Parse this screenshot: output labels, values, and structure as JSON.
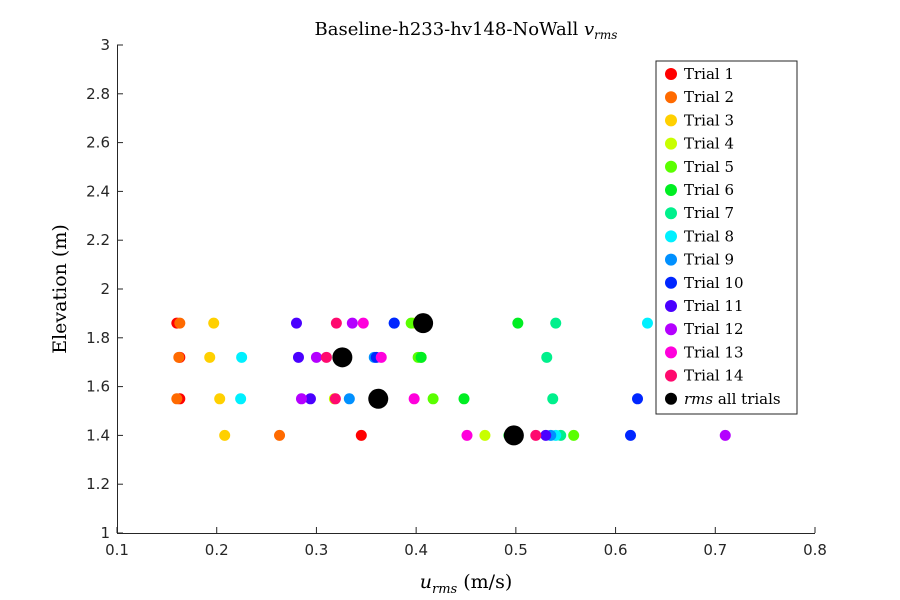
{
  "chart_data": {
    "type": "scatter",
    "title": "Baseline-h233-hv148-NoWall",
    "title_math": "v",
    "title_math_sub": "rms",
    "xlabel_math": "u",
    "xlabel_math_sub": "rms",
    "xlabel": "(m/s)",
    "ylabel": "Elevation (m)",
    "xlim": [
      0.1,
      0.8
    ],
    "ylim": [
      1,
      3
    ],
    "xticks": [
      "0.1",
      "0.2",
      "0.3",
      "0.4",
      "0.5",
      "0.6",
      "0.7",
      "0.8"
    ],
    "yticks": [
      "1",
      "1.2",
      "1.4",
      "1.6",
      "1.8",
      "2",
      "2.2",
      "2.4",
      "2.6",
      "2.8",
      "3"
    ],
    "grid": false,
    "legend_position": "top-right",
    "series": [
      {
        "name": "Trial 1",
        "color": "#ff0000",
        "points": [
          [
            0.16,
            1.86
          ],
          [
            0.163,
            1.72
          ],
          [
            0.163,
            1.55
          ],
          [
            0.345,
            1.4
          ]
        ]
      },
      {
        "name": "Trial 2",
        "color": "#ff6a00",
        "points": [
          [
            0.163,
            1.86
          ],
          [
            0.162,
            1.72
          ],
          [
            0.16,
            1.55
          ],
          [
            0.263,
            1.4
          ]
        ]
      },
      {
        "name": "Trial 3",
        "color": "#ffd000",
        "points": [
          [
            0.197,
            1.86
          ],
          [
            0.193,
            1.72
          ],
          [
            0.203,
            1.55
          ],
          [
            0.208,
            1.4
          ]
        ]
      },
      {
        "name": "Trial 4",
        "color": "#c8ff00",
        "points": [
          [
            0.397,
            1.86
          ],
          [
            0.405,
            1.72
          ],
          [
            0.318,
            1.55
          ],
          [
            0.469,
            1.4
          ]
        ]
      },
      {
        "name": "Trial 5",
        "color": "#5aff00",
        "points": [
          [
            0.395,
            1.86
          ],
          [
            0.402,
            1.72
          ],
          [
            0.417,
            1.55
          ],
          [
            0.558,
            1.4
          ]
        ]
      },
      {
        "name": "Trial 6",
        "color": "#00ee22",
        "points": [
          [
            0.502,
            1.86
          ],
          [
            0.405,
            1.72
          ],
          [
            0.448,
            1.55
          ],
          [
            0.493,
            1.4
          ]
        ]
      },
      {
        "name": "Trial 7",
        "color": "#00f08c",
        "points": [
          [
            0.54,
            1.86
          ],
          [
            0.531,
            1.72
          ],
          [
            0.537,
            1.55
          ],
          [
            0.545,
            1.4
          ]
        ]
      },
      {
        "name": "Trial 8",
        "color": "#00f0ff",
        "points": [
          [
            0.632,
            1.86
          ],
          [
            0.225,
            1.72
          ],
          [
            0.224,
            1.55
          ],
          [
            0.54,
            1.4
          ]
        ]
      },
      {
        "name": "Trial 9",
        "color": "#0090ff",
        "points": [
          [
            0.378,
            1.86
          ],
          [
            0.358,
            1.72
          ],
          [
            0.333,
            1.55
          ],
          [
            0.535,
            1.4
          ]
        ]
      },
      {
        "name": "Trial 10",
        "color": "#0026ff",
        "points": [
          [
            0.378,
            1.86
          ],
          [
            0.36,
            1.72
          ],
          [
            0.622,
            1.55
          ],
          [
            0.615,
            1.4
          ]
        ]
      },
      {
        "name": "Trial 11",
        "color": "#4a00ff",
        "points": [
          [
            0.28,
            1.86
          ],
          [
            0.282,
            1.72
          ],
          [
            0.294,
            1.55
          ],
          [
            0.53,
            1.4
          ]
        ]
      },
      {
        "name": "Trial 12",
        "color": "#b400ff",
        "points": [
          [
            0.336,
            1.86
          ],
          [
            0.3,
            1.72
          ],
          [
            0.285,
            1.55
          ],
          [
            0.71,
            1.4
          ]
        ]
      },
      {
        "name": "Trial 13",
        "color": "#ff00dc",
        "points": [
          [
            0.347,
            1.86
          ],
          [
            0.365,
            1.72
          ],
          [
            0.398,
            1.55
          ],
          [
            0.451,
            1.4
          ]
        ]
      },
      {
        "name": "Trial 14",
        "color": "#ff0a6e",
        "points": [
          [
            0.32,
            1.86
          ],
          [
            0.31,
            1.72
          ],
          [
            0.319,
            1.55
          ],
          [
            0.52,
            1.4
          ]
        ]
      },
      {
        "name": "rms all trials",
        "name_math": "rms",
        "name_text": "all trials",
        "color": "#000000",
        "large": true,
        "points": [
          [
            0.407,
            1.86
          ],
          [
            0.326,
            1.72
          ],
          [
            0.362,
            1.55
          ],
          [
            0.498,
            1.4
          ]
        ]
      }
    ]
  }
}
